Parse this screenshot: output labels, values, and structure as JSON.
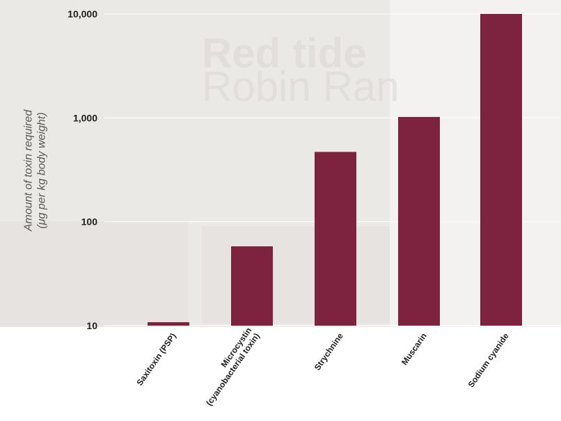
{
  "chart_data": {
    "type": "bar",
    "categories": [
      "Saxitoxin (PSP)",
      "Microcystin\n(cyanobacterial toxin)",
      "Strychnine",
      "Muscarin",
      "Sodium cyanide"
    ],
    "values": [
      10.8,
      58,
      470,
      1020,
      10000
    ],
    "ylabel": "Amount of toxin required\n(μg per kg body weight)",
    "yscale": "log",
    "ylim": [
      10,
      10000
    ],
    "yticks": [
      {
        "value": 10,
        "label": "10"
      },
      {
        "value": 100,
        "label": "100"
      },
      {
        "value": 1000,
        "label": "1,000"
      },
      {
        "value": 10000,
        "label": "10,000"
      }
    ],
    "grid": true,
    "bar_color": "#7d2340"
  },
  "background": {
    "line1": "Red tide",
    "line2": "Robin Ran"
  }
}
